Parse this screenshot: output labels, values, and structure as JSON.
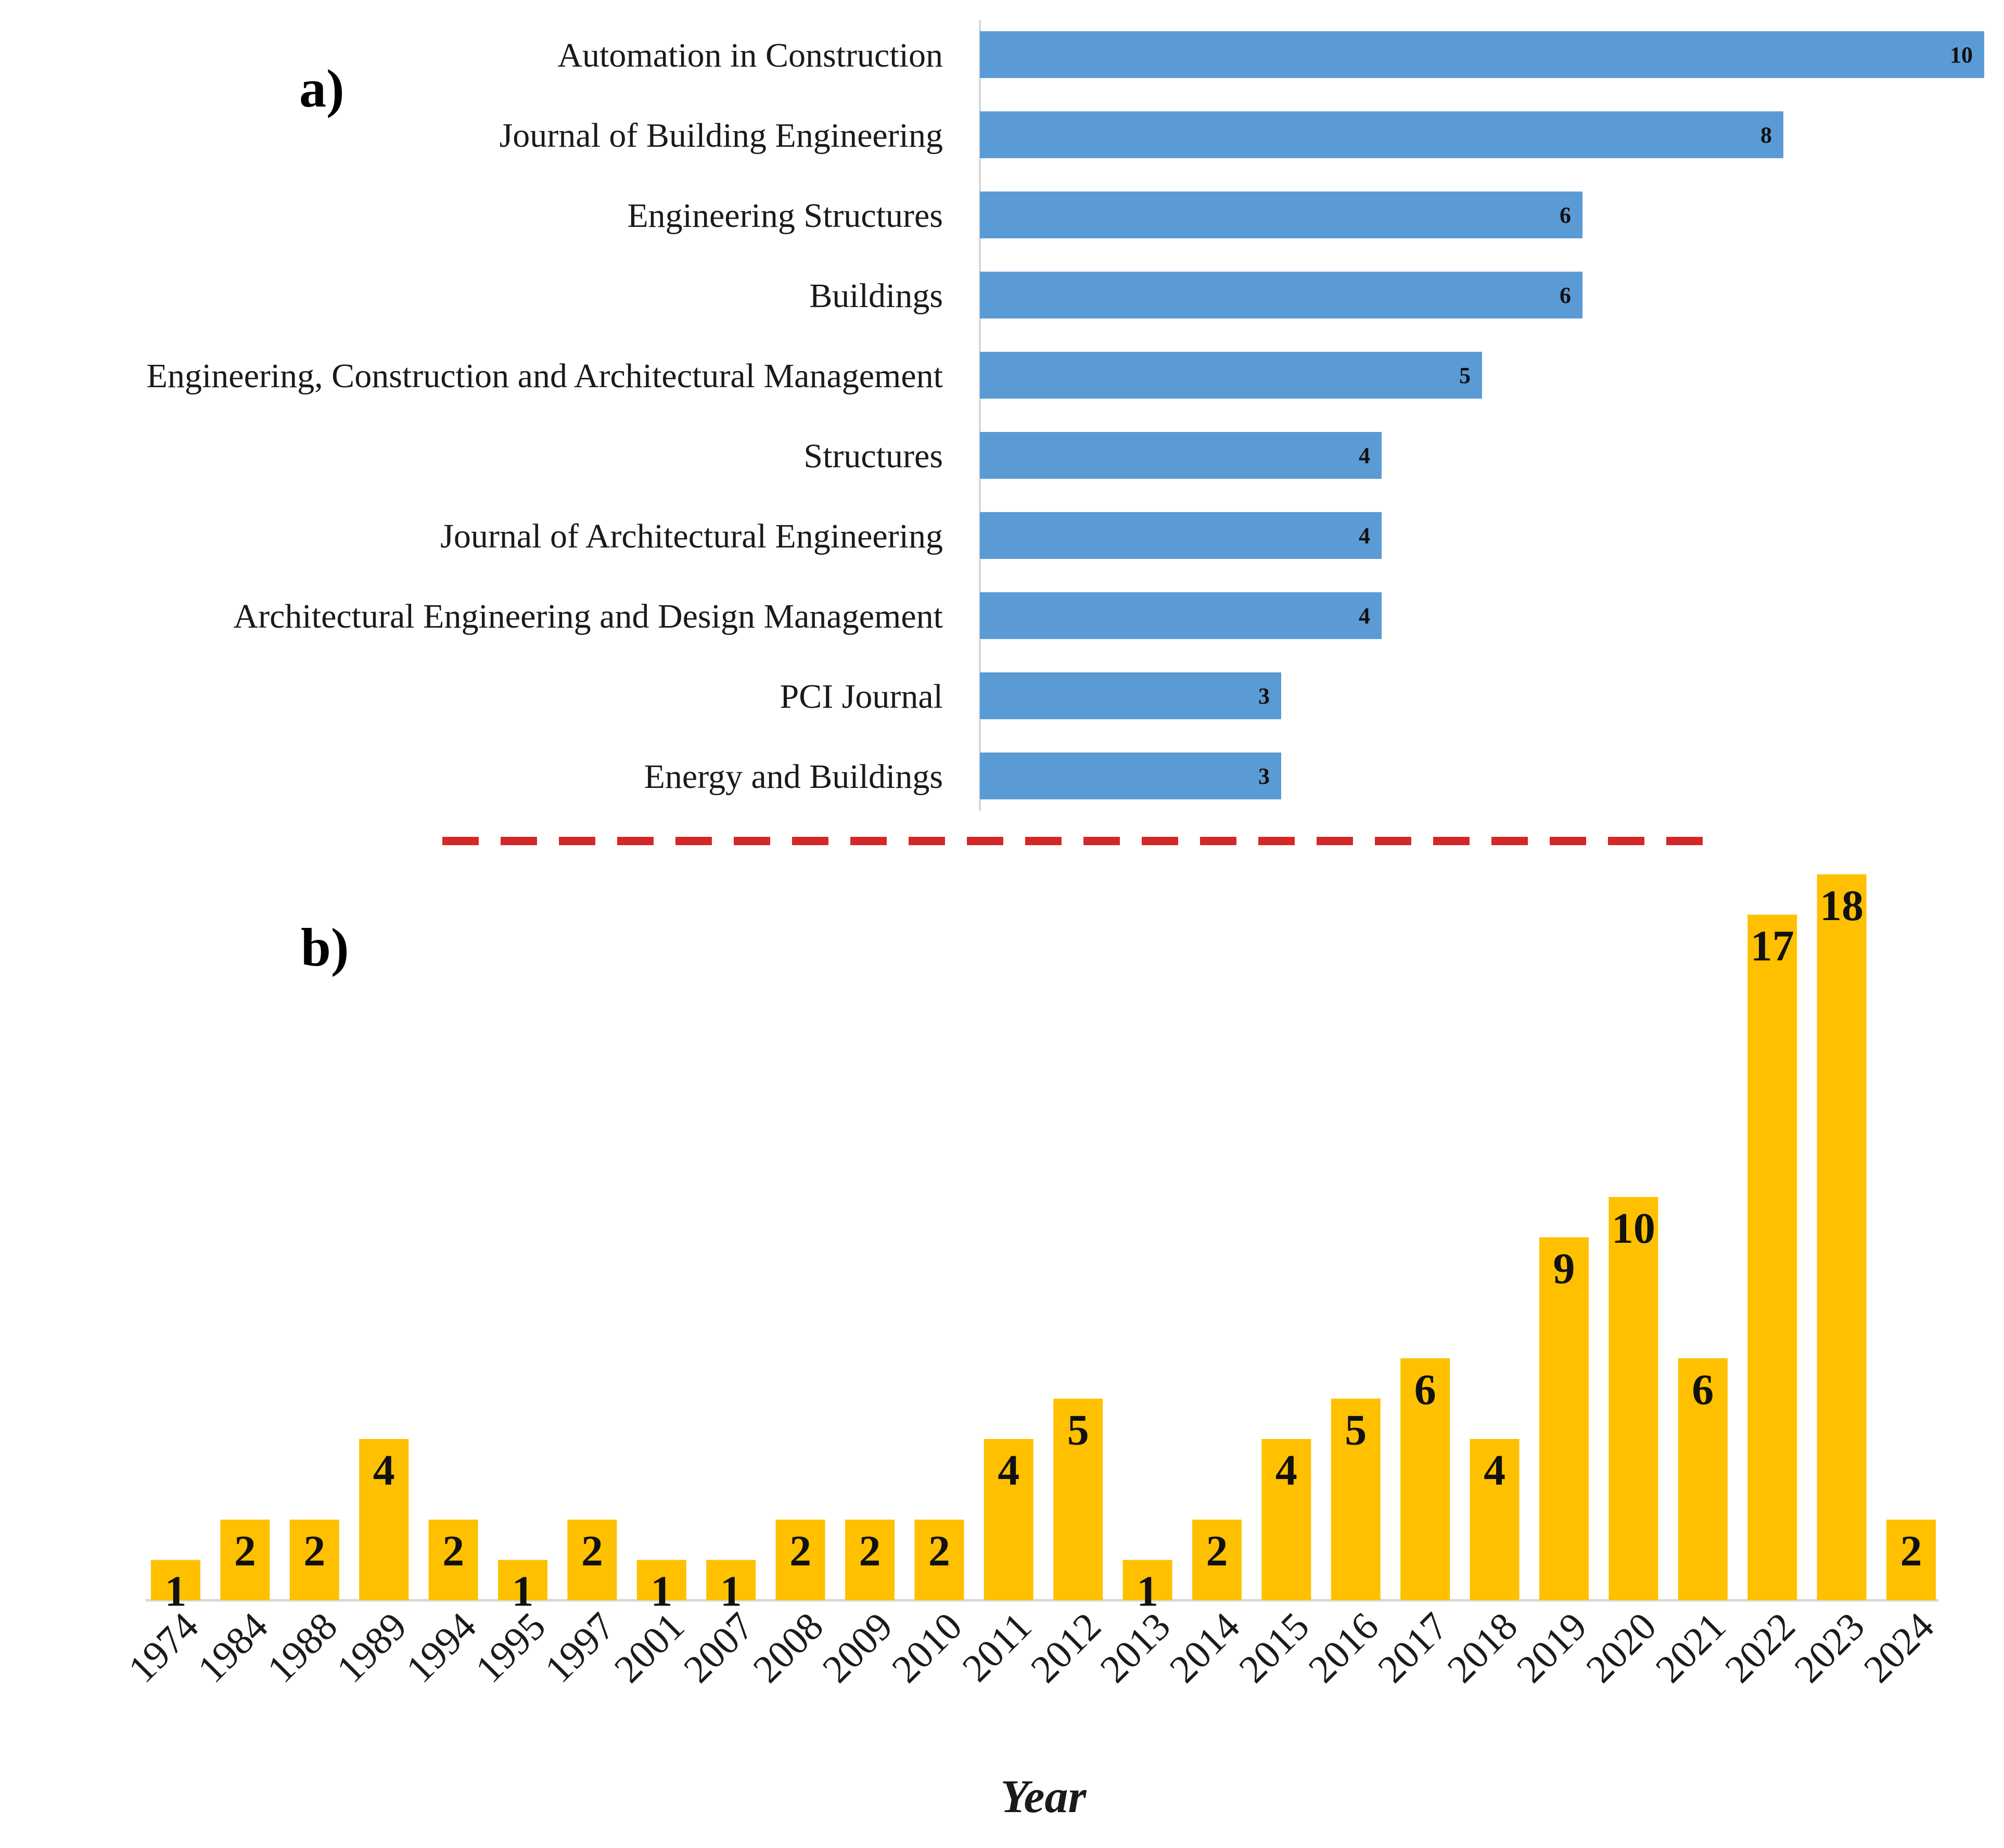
{
  "panels": {
    "a_label": "a)",
    "b_label": "b)"
  },
  "colors": {
    "journal_bars": "#5b9bd5",
    "year_bars": "#ffc000",
    "divider": "#d62728",
    "axis_line": "#d9d9d9"
  },
  "chart_data": [
    {
      "type": "bar",
      "orientation": "horizontal",
      "panel": "a)",
      "categories": [
        "Automation in Construction",
        "Journal of Building Engineering",
        "Engineering Structures",
        "Buildings",
        "Engineering, Construction and Architectural Management",
        "Structures",
        "Journal of Architectural Engineering",
        "Architectural Engineering and Design Management",
        "PCI Journal",
        "Energy and Buildings"
      ],
      "values": [
        10,
        8,
        6,
        6,
        5,
        4,
        4,
        4,
        3,
        3
      ],
      "data_labels": true,
      "xlim": [
        0,
        10
      ],
      "grid": false
    },
    {
      "type": "bar",
      "orientation": "vertical",
      "panel": "b)",
      "categories": [
        "1974",
        "1984",
        "1988",
        "1989",
        "1994",
        "1995",
        "1997",
        "2001",
        "2007",
        "2008",
        "2009",
        "2010",
        "2011",
        "2012",
        "2013",
        "2014",
        "2015",
        "2016",
        "2017",
        "2018",
        "2019",
        "2020",
        "2021",
        "2022",
        "2023",
        "2024"
      ],
      "values": [
        1,
        2,
        2,
        4,
        2,
        1,
        2,
        1,
        1,
        2,
        2,
        2,
        4,
        5,
        1,
        2,
        4,
        5,
        6,
        4,
        9,
        10,
        6,
        17,
        18,
        2
      ],
      "xlabel": "Year",
      "ylim": [
        0,
        18
      ],
      "data_labels": true,
      "grid": false
    }
  ]
}
